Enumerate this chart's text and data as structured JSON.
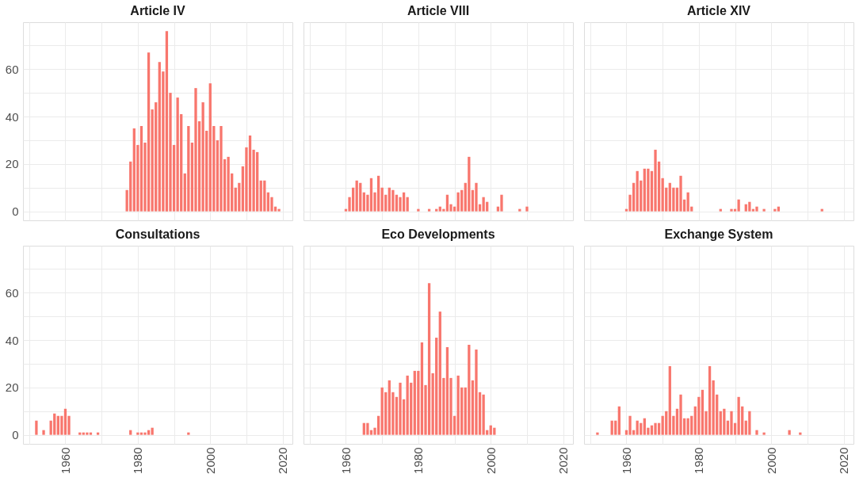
{
  "chart_data": [
    {
      "type": "bar",
      "title": "Article IV",
      "color": "#f8766d",
      "grid": true,
      "tick_labels": "y",
      "xlim": [
        1948.3,
        2022.7
      ],
      "ylim": [
        -3.8,
        79.8
      ],
      "xticks": [
        {
          "value": 1950,
          "label": null
        },
        {
          "value": 1960,
          "label": null
        },
        {
          "value": 1970,
          "label": null
        },
        {
          "value": 1980,
          "label": null
        },
        {
          "value": 1990,
          "label": null
        },
        {
          "value": 2000,
          "label": null
        },
        {
          "value": 2010,
          "label": null
        },
        {
          "value": 2020,
          "label": null
        }
      ],
      "yticks": [
        0,
        {
          "value": 10,
          "label": null
        },
        20,
        {
          "value": 30,
          "label": null
        },
        40,
        {
          "value": 50,
          "label": null
        },
        60,
        {
          "value": 70,
          "label": null
        }
      ],
      "x": [
        1977,
        1978,
        1979,
        1980,
        1981,
        1982,
        1983,
        1984,
        1985,
        1986,
        1987,
        1988,
        1989,
        1990,
        1991,
        1992,
        1993,
        1994,
        1995,
        1996,
        1997,
        1998,
        1999,
        2000,
        2001,
        2002,
        2003,
        2004,
        2005,
        2006,
        2007,
        2008,
        2009,
        2010,
        2011,
        2012,
        2013,
        2014,
        2015,
        2016,
        2017,
        2018,
        2019
      ],
      "values": [
        9,
        21,
        35,
        28,
        36,
        29,
        67,
        43,
        46,
        63,
        59,
        76,
        50,
        28,
        48,
        41,
        16,
        36,
        29,
        52,
        38,
        46,
        34,
        54,
        36,
        30,
        36,
        22,
        23,
        16,
        10,
        12,
        19,
        27,
        32,
        26,
        25,
        13,
        13,
        8,
        6,
        2,
        1
      ]
    },
    {
      "type": "bar",
      "title": "Article VIII",
      "color": "#f8766d",
      "grid": true,
      "tick_labels": false,
      "xlim": [
        1948.3,
        2022.7
      ],
      "ylim": [
        -3.8,
        79.8
      ],
      "xticks": [
        {
          "value": 1950,
          "label": null
        },
        {
          "value": 1960,
          "label": null
        },
        {
          "value": 1970,
          "label": null
        },
        {
          "value": 1980,
          "label": null
        },
        {
          "value": 1990,
          "label": null
        },
        {
          "value": 2000,
          "label": null
        },
        {
          "value": 2010,
          "label": null
        },
        {
          "value": 2020,
          "label": null
        }
      ],
      "yticks": [
        {
          "value": 0,
          "label": null
        },
        {
          "value": 10,
          "label": null
        },
        {
          "value": 20,
          "label": null
        },
        {
          "value": 30,
          "label": null
        },
        {
          "value": 40,
          "label": null
        },
        {
          "value": 50,
          "label": null
        },
        {
          "value": 60,
          "label": null
        },
        {
          "value": 70,
          "label": null
        }
      ],
      "x": [
        1960,
        1961,
        1962,
        1963,
        1964,
        1965,
        1966,
        1967,
        1968,
        1969,
        1970,
        1971,
        1972,
        1973,
        1974,
        1975,
        1976,
        1977,
        1980,
        1983,
        1985,
        1986,
        1987,
        1988,
        1989,
        1990,
        1991,
        1992,
        1993,
        1994,
        1995,
        1996,
        1997,
        1998,
        1999,
        2002,
        2003,
        2008,
        2010
      ],
      "values": [
        1,
        6,
        10,
        13,
        12,
        8,
        7,
        14,
        8,
        15,
        10,
        7,
        10,
        9,
        7,
        6,
        8,
        6,
        1,
        1,
        1,
        2,
        1,
        7,
        3,
        2,
        8,
        9,
        12,
        23,
        9,
        12,
        3,
        6,
        4,
        2,
        7,
        1,
        2
      ]
    },
    {
      "type": "bar",
      "title": "Article XIV",
      "color": "#f8766d",
      "grid": true,
      "tick_labels": false,
      "xlim": [
        1948.3,
        2022.7
      ],
      "ylim": [
        -3.8,
        79.8
      ],
      "xticks": [
        {
          "value": 1950,
          "label": null
        },
        {
          "value": 1960,
          "label": null
        },
        {
          "value": 1970,
          "label": null
        },
        {
          "value": 1980,
          "label": null
        },
        {
          "value": 1990,
          "label": null
        },
        {
          "value": 2000,
          "label": null
        },
        {
          "value": 2010,
          "label": null
        },
        {
          "value": 2020,
          "label": null
        }
      ],
      "yticks": [
        {
          "value": 0,
          "label": null
        },
        {
          "value": 10,
          "label": null
        },
        {
          "value": 20,
          "label": null
        },
        {
          "value": 30,
          "label": null
        },
        {
          "value": 40,
          "label": null
        },
        {
          "value": 50,
          "label": null
        },
        {
          "value": 60,
          "label": null
        },
        {
          "value": 70,
          "label": null
        }
      ],
      "x": [
        1960,
        1961,
        1962,
        1963,
        1964,
        1965,
        1966,
        1967,
        1968,
        1969,
        1970,
        1971,
        1972,
        1973,
        1974,
        1975,
        1976,
        1977,
        1978,
        1986,
        1989,
        1990,
        1991,
        1993,
        1994,
        1995,
        1996,
        1998,
        2001,
        2002,
        2014
      ],
      "values": [
        1,
        7,
        12,
        17,
        13,
        18,
        18,
        17,
        26,
        21,
        14,
        10,
        12,
        10,
        10,
        15,
        5,
        8,
        2,
        1,
        1,
        1,
        5,
        3,
        4,
        1,
        2,
        1,
        1,
        2,
        1
      ]
    },
    {
      "type": "bar",
      "title": "Consultations",
      "color": "#f8766d",
      "grid": true,
      "xlim": [
        1948.3,
        2022.7
      ],
      "ylim": [
        -3.8,
        79.8
      ],
      "xticks": [
        {
          "value": 1950,
          "label": null
        },
        1960,
        {
          "value": 1970,
          "label": null
        },
        1980,
        {
          "value": 1990,
          "label": null
        },
        2000,
        {
          "value": 2010,
          "label": null
        },
        2020
      ],
      "yticks": [
        0,
        {
          "value": 10,
          "label": null
        },
        20,
        {
          "value": 30,
          "label": null
        },
        40,
        {
          "value": 50,
          "label": null
        },
        60,
        {
          "value": 70,
          "label": null
        }
      ],
      "x": [
        1952,
        1954,
        1956,
        1957,
        1958,
        1959,
        1960,
        1961,
        1964,
        1965,
        1966,
        1967,
        1969,
        1978,
        1980,
        1981,
        1982,
        1983,
        1984,
        1994
      ],
      "values": [
        6,
        2,
        6,
        9,
        8,
        8,
        11,
        8,
        1,
        1,
        1,
        1,
        1,
        2,
        1,
        1,
        1,
        2,
        3,
        1
      ]
    },
    {
      "type": "bar",
      "title": "Eco Developments",
      "color": "#f8766d",
      "grid": true,
      "tick_labels": "x",
      "xlim": [
        1948.3,
        2022.7
      ],
      "ylim": [
        -3.8,
        79.8
      ],
      "xticks": [
        {
          "value": 1950,
          "label": null
        },
        1960,
        {
          "value": 1970,
          "label": null
        },
        1980,
        {
          "value": 1990,
          "label": null
        },
        2000,
        {
          "value": 2010,
          "label": null
        },
        2020
      ],
      "yticks": [
        {
          "value": 0,
          "label": null
        },
        {
          "value": 10,
          "label": null
        },
        {
          "value": 20,
          "label": null
        },
        {
          "value": 30,
          "label": null
        },
        {
          "value": 40,
          "label": null
        },
        {
          "value": 50,
          "label": null
        },
        {
          "value": 60,
          "label": null
        },
        {
          "value": 70,
          "label": null
        }
      ],
      "x": [
        1965,
        1966,
        1967,
        1968,
        1969,
        1970,
        1971,
        1972,
        1973,
        1974,
        1975,
        1976,
        1977,
        1978,
        1979,
        1980,
        1981,
        1982,
        1983,
        1984,
        1985,
        1986,
        1987,
        1988,
        1989,
        1990,
        1991,
        1992,
        1993,
        1994,
        1995,
        1996,
        1997,
        1998,
        1999,
        2000,
        2001
      ],
      "values": [
        5,
        5,
        2,
        3,
        8,
        20,
        18,
        23,
        18,
        16,
        22,
        15,
        25,
        22,
        27,
        27,
        39,
        21,
        64,
        26,
        41,
        52,
        24,
        37,
        24,
        8,
        25,
        20,
        20,
        38,
        23,
        36,
        18,
        17,
        2,
        4,
        3
      ]
    },
    {
      "type": "bar",
      "title": "Exchange System",
      "color": "#f8766d",
      "grid": true,
      "tick_labels": "x",
      "xlim": [
        1948.3,
        2022.7
      ],
      "ylim": [
        -3.8,
        79.8
      ],
      "xticks": [
        {
          "value": 1950,
          "label": null
        },
        1960,
        {
          "value": 1970,
          "label": null
        },
        1980,
        {
          "value": 1990,
          "label": null
        },
        2000,
        {
          "value": 2010,
          "label": null
        },
        2020
      ],
      "yticks": [
        {
          "value": 0,
          "label": null
        },
        {
          "value": 10,
          "label": null
        },
        {
          "value": 20,
          "label": null
        },
        {
          "value": 30,
          "label": null
        },
        {
          "value": 40,
          "label": null
        },
        {
          "value": 50,
          "label": null
        },
        {
          "value": 60,
          "label": null
        },
        {
          "value": 70,
          "label": null
        }
      ],
      "x": [
        1952,
        1956,
        1957,
        1958,
        1960,
        1961,
        1962,
        1963,
        1964,
        1965,
        1966,
        1967,
        1968,
        1969,
        1970,
        1971,
        1972,
        1973,
        1974,
        1975,
        1976,
        1977,
        1978,
        1979,
        1980,
        1981,
        1982,
        1983,
        1984,
        1985,
        1986,
        1987,
        1988,
        1989,
        1990,
        1991,
        1992,
        1993,
        1994,
        1996,
        1998,
        2005,
        2008
      ],
      "values": [
        1,
        6,
        6,
        12,
        2,
        8,
        2,
        6,
        5,
        7,
        3,
        4,
        5,
        5,
        8,
        10,
        29,
        8,
        11,
        17,
        7,
        7,
        8,
        12,
        16,
        19,
        10,
        29,
        23,
        17,
        10,
        11,
        6,
        10,
        5,
        16,
        12,
        6,
        10,
        2,
        1,
        2,
        1
      ]
    }
  ]
}
